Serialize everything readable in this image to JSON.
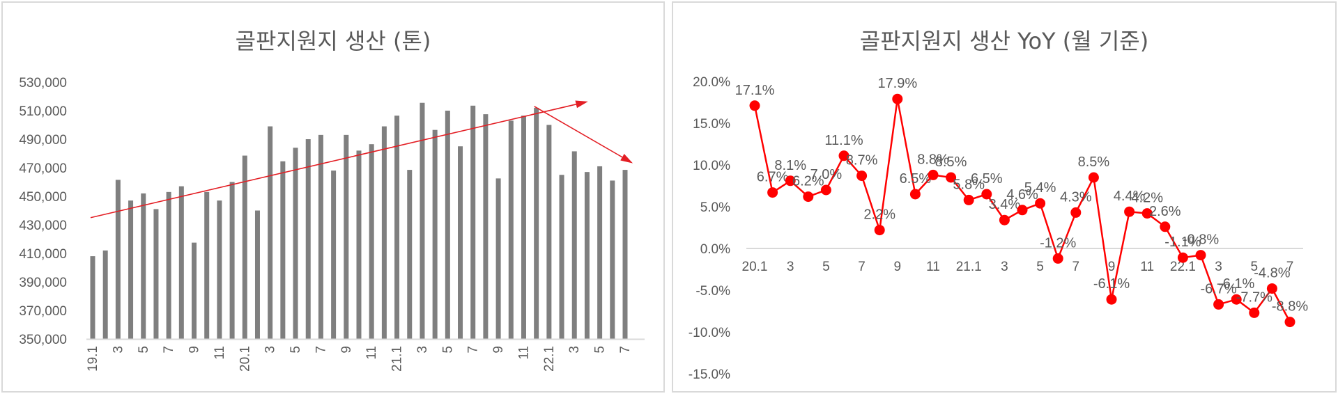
{
  "colors": {
    "bar": "#7f7f7f",
    "line": "#ff0000",
    "trend_arrow": "#e31e24",
    "axis": "#d9d9d9",
    "text": "#595959",
    "border": "#d9d9d9"
  },
  "left_chart": {
    "title": "골판지원지 생산 (톤)"
  },
  "right_chart": {
    "title": "골판지원지 생산 YoY (월 기준)"
  },
  "chart_data": [
    {
      "type": "bar",
      "title": "골판지원지 생산 (톤)",
      "xlabel": "",
      "ylabel": "",
      "ylim": [
        350000,
        530000
      ],
      "yticks": [
        350000,
        370000,
        390000,
        410000,
        430000,
        450000,
        470000,
        490000,
        510000,
        530000
      ],
      "ytick_labels": [
        "350,000",
        "370,000",
        "390,000",
        "410,000",
        "430,000",
        "450,000",
        "470,000",
        "490,000",
        "510,000",
        "530,000"
      ],
      "grid": false,
      "legend": null,
      "categories": [
        "19.1",
        "2",
        "3",
        "4",
        "5",
        "6",
        "7",
        "8",
        "9",
        "10",
        "11",
        "12",
        "20.1",
        "2",
        "3",
        "4",
        "5",
        "6",
        "7",
        "8",
        "9",
        "10",
        "11",
        "12",
        "21.1",
        "2",
        "3",
        "4",
        "5",
        "6",
        "7",
        "8",
        "9",
        "10",
        "11",
        "12",
        "22.1",
        "2",
        "3",
        "4",
        "5",
        "6",
        "7"
      ],
      "xtick_labels_shown": [
        "19.1",
        "3",
        "5",
        "7",
        "9",
        "11",
        "20.1",
        "3",
        "5",
        "7",
        "9",
        "11",
        "21.1",
        "3",
        "5",
        "7",
        "9",
        "11",
        "22.1",
        "3",
        "5",
        "7"
      ],
      "values": [
        408000,
        412000,
        461500,
        447000,
        452000,
        441000,
        453000,
        457000,
        417500,
        453000,
        447000,
        460000,
        478500,
        440000,
        499000,
        474500,
        484000,
        490000,
        493000,
        468000,
        493000,
        482000,
        486500,
        499000,
        506500,
        468500,
        515500,
        496500,
        510000,
        485000,
        513500,
        507500,
        462500,
        503000,
        506500,
        512000,
        500000,
        465000,
        481500,
        467000,
        471000,
        461000,
        468500
      ],
      "annotations": [
        {
          "type": "arrow",
          "description": "upward trend arrow",
          "from_index": 0,
          "to_index": 33,
          "from_value": 435000,
          "to_value": 516000
        },
        {
          "type": "arrow",
          "description": "downward trend arrow",
          "from_index": 35,
          "to_index": 42,
          "from_value": 513000,
          "to_value": 474000
        }
      ]
    },
    {
      "type": "line",
      "title": "골판지원지 생산 YoY (월 기준)",
      "xlabel": "",
      "ylabel": "",
      "ylim": [
        -15.0,
        20.0
      ],
      "yticks": [
        -15.0,
        -10.0,
        -5.0,
        0.0,
        5.0,
        10.0,
        15.0,
        20.0
      ],
      "ytick_labels": [
        "-15.0%",
        "-10.0%",
        "-5.0%",
        "0.0%",
        "5.0%",
        "10.0%",
        "15.0%",
        "20.0%"
      ],
      "grid": false,
      "legend": null,
      "categories": [
        "20.1",
        "2",
        "3",
        "4",
        "5",
        "6",
        "7",
        "8",
        "9",
        "10",
        "11",
        "12",
        "21.1",
        "2",
        "3",
        "4",
        "5",
        "6",
        "7",
        "8",
        "9",
        "10",
        "11",
        "12",
        "22.1",
        "2",
        "3",
        "4",
        "5",
        "6",
        "7"
      ],
      "xtick_labels_shown": [
        "20.1",
        "3",
        "5",
        "7",
        "9",
        "11",
        "21.1",
        "3",
        "5",
        "7",
        "9",
        "11",
        "22.1",
        "3",
        "5",
        "7"
      ],
      "series": [
        {
          "name": "YoY",
          "values": [
            17.1,
            6.7,
            8.1,
            6.2,
            7.0,
            11.1,
            8.7,
            2.2,
            17.9,
            6.5,
            8.8,
            8.5,
            5.8,
            6.5,
            3.4,
            4.6,
            5.4,
            -1.2,
            4.3,
            8.5,
            -6.1,
            4.4,
            4.2,
            2.6,
            -1.1,
            -0.8,
            -6.7,
            -6.1,
            -7.7,
            -4.8,
            -8.8
          ],
          "data_labels": [
            "17.1%",
            "6.7%",
            "8.1%",
            "6.2%",
            "7.0%",
            "11.1%",
            "8.7%",
            "2.2%",
            "17.9%",
            "6.5%",
            "8.8%",
            "8.5%",
            "5.8%",
            "6.5%",
            "3.4%",
            "4.6%",
            "5.4%",
            "-1.2%",
            "4.3%",
            "8.5%",
            "-6.1%",
            "4.4%",
            "4.2%",
            "2.6%",
            "-1.1%",
            "-0.8%",
            "-6.7%",
            "-6.1%",
            "-7.7%",
            "-4.8%",
            "-8.8%"
          ],
          "marker": "circle",
          "color": "#ff0000"
        }
      ]
    }
  ]
}
